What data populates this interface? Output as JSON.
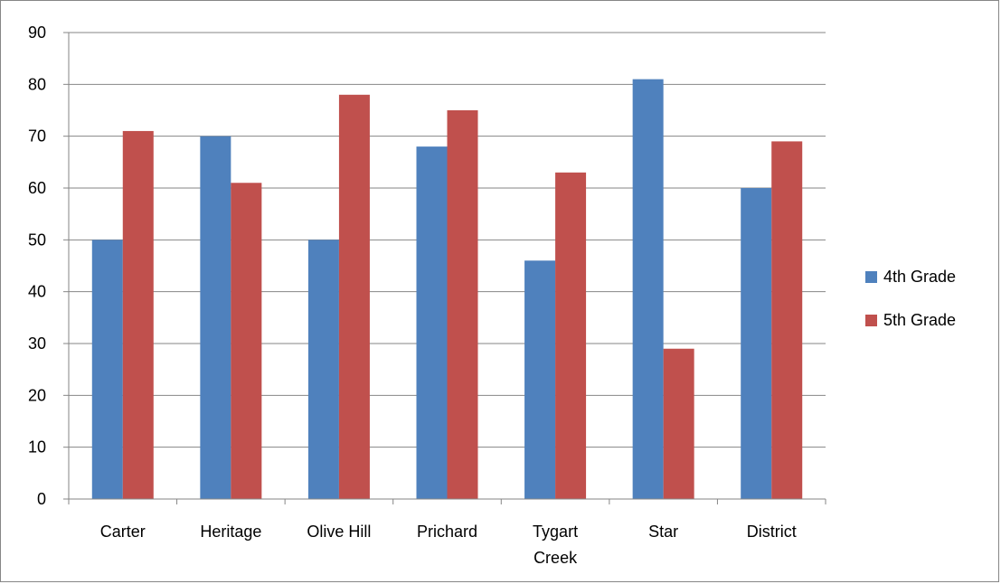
{
  "chart_data": {
    "type": "bar",
    "title": "",
    "xlabel": "",
    "ylabel": "",
    "ylim": [
      0,
      90
    ],
    "yticks": [
      0,
      10,
      20,
      30,
      40,
      50,
      60,
      70,
      80,
      90
    ],
    "grid": true,
    "legend_position": "right",
    "categories": [
      [
        "Carter"
      ],
      [
        "Heritage"
      ],
      [
        "Olive Hill"
      ],
      [
        "Prichard"
      ],
      [
        "Tygart",
        "Creek"
      ],
      [
        "Star"
      ],
      [
        "District"
      ]
    ],
    "series": [
      {
        "name": "4th Grade",
        "color": "#4F81BD",
        "values": [
          50,
          70,
          50,
          68,
          46,
          81,
          60
        ]
      },
      {
        "name": "5th Grade",
        "color": "#C0504D",
        "values": [
          71,
          61,
          78,
          75,
          63,
          29,
          69
        ]
      }
    ]
  }
}
